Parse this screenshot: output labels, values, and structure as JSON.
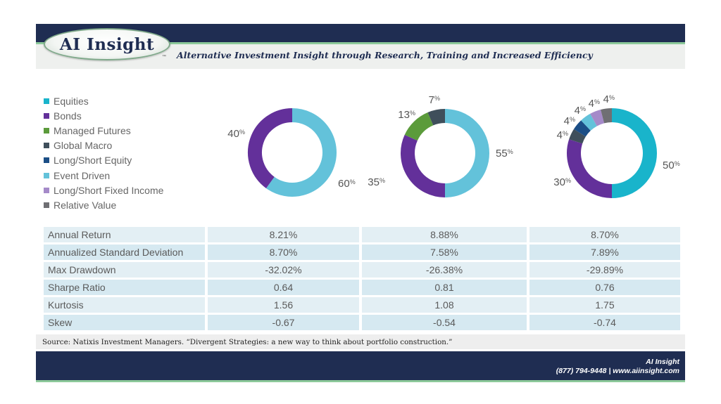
{
  "brand": {
    "logo_text": "AI Insight",
    "tm": "™"
  },
  "tagline": "Alternative Investment Insight through Research, Training and Increased Efficiency",
  "colors": {
    "navy": "#1f2d52",
    "green_stripe": "#8cc99a"
  },
  "chart_data": {
    "type": "pie",
    "legend": [
      {
        "name": "Equities",
        "color": "#19b4cb"
      },
      {
        "name": "Bonds",
        "color": "#63309a"
      },
      {
        "name": "Managed Futures",
        "color": "#5b9b3b"
      },
      {
        "name": "Global Macro",
        "color": "#3f4f5b"
      },
      {
        "name": "Long/Short Equity",
        "color": "#1b4e86"
      },
      {
        "name": "Event Driven",
        "color": "#63c2da"
      },
      {
        "name": "Long/Short Fixed Income",
        "color": "#a58ac9"
      },
      {
        "name": "Relative Value",
        "color": "#6f6f73"
      }
    ],
    "pies": [
      {
        "slices": [
          {
            "name": "Event Driven",
            "value": 60,
            "label": "60"
          },
          {
            "name": "Bonds",
            "value": 40,
            "label": "40"
          }
        ]
      },
      {
        "slices": [
          {
            "name": "Event Driven",
            "value": 55,
            "label": "55"
          },
          {
            "name": "Bonds",
            "value": 35,
            "label": "35"
          },
          {
            "name": "Managed Futures",
            "value": 13,
            "label": "13"
          },
          {
            "name": "Global Macro",
            "value": 7,
            "label": "7"
          }
        ]
      },
      {
        "slices": [
          {
            "name": "Equities",
            "value": 50,
            "label": "50"
          },
          {
            "name": "Bonds",
            "value": 30,
            "label": "30"
          },
          {
            "name": "Global Macro",
            "value": 4,
            "label": "4"
          },
          {
            "name": "Long/Short Equity",
            "value": 4,
            "label": "4"
          },
          {
            "name": "Event Driven",
            "value": 4,
            "label": "4"
          },
          {
            "name": "Long/Short Fixed Income",
            "value": 4,
            "label": "4"
          },
          {
            "name": "Relative Value",
            "value": 4,
            "label": "4"
          }
        ]
      }
    ],
    "pct_suffix": "%"
  },
  "stats": {
    "rows": [
      {
        "metric": "Annual Return",
        "values": [
          "8.21%",
          "8.88%",
          "8.70%"
        ]
      },
      {
        "metric": "Annualized Standard Deviation",
        "values": [
          "8.70%",
          "7.58%",
          "7.89%"
        ]
      },
      {
        "metric": "Max Drawdown",
        "values": [
          "-32.02%",
          "-26.38%",
          "-29.89%"
        ]
      },
      {
        "metric": "Sharpe Ratio",
        "values": [
          "0.64",
          "0.81",
          "0.76"
        ]
      },
      {
        "metric": "Kurtosis",
        "values": [
          "1.56",
          "1.08",
          "1.75"
        ]
      },
      {
        "metric": "Skew",
        "values": [
          "-0.67",
          "-0.54",
          "-0.74"
        ]
      }
    ]
  },
  "source": "Source: Natixis Investment Managers. “Divergent Strategies: a new way to think about portfolio construction.”",
  "footer": {
    "line1": "AI Insight",
    "line2": "(877) 794-9448 | www.aiinsight.com"
  }
}
